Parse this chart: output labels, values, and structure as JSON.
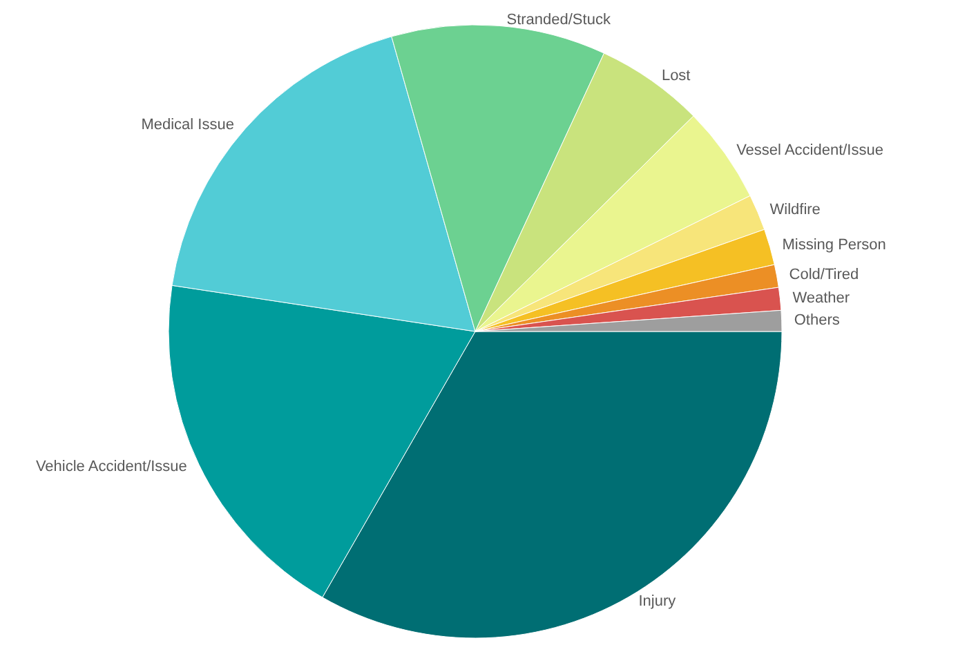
{
  "chart_data": {
    "type": "pie",
    "categories": [
      "Injury",
      "Vehicle Accident/Issue",
      "Medical Issue",
      "Stranded/Stuck",
      "Lost",
      "Vessel Accident/Issue",
      "Wildfire",
      "Missing Person",
      "Cold/Tired",
      "Weather",
      "Others"
    ],
    "values": [
      33.3,
      19.1,
      18.2,
      11.3,
      5.7,
      5.1,
      1.9,
      1.9,
      1.2,
      1.2,
      1.1
    ],
    "colors": [
      "#006e73",
      "#009c9c",
      "#52ccd6",
      "#6cd191",
      "#c9e37d",
      "#eaf58f",
      "#f7e57a",
      "#f5c024",
      "#ec8f25",
      "#d9534f",
      "#9e9e9e"
    ],
    "legend": false
  }
}
